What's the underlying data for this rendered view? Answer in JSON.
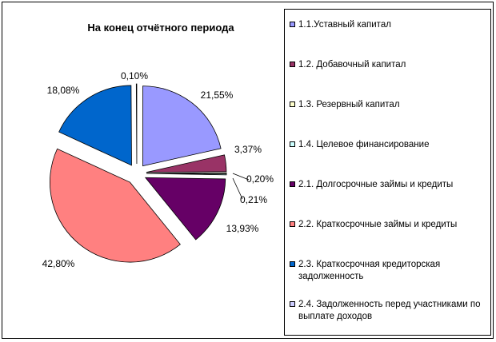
{
  "chart_data": {
    "type": "pie",
    "title": "На конец отчётного периода",
    "slices": [
      {
        "label": "1.1.Уставный капитал",
        "value": 21.55,
        "display": "21,55%",
        "color": "#9999FF"
      },
      {
        "label": "1.2. Добавочный капитал",
        "value": 3.37,
        "display": "3,37%",
        "color": "#993366"
      },
      {
        "label": "1.3. Резервный капитал",
        "value": 0.2,
        "display": "0,20%",
        "color": "#FFFFCC"
      },
      {
        "label": "1.4. Целевое финансирование",
        "value": 0.21,
        "display": "0,21%",
        "color": "#CCFFFF"
      },
      {
        "label": "2.1. Долгосрочные займы и кредиты",
        "value": 13.93,
        "display": "13,93%",
        "color": "#660066"
      },
      {
        "label": "2.2. Краткосрочные займы и кредиты",
        "value": 42.8,
        "display": "42,80%",
        "color": "#FF8080"
      },
      {
        "label": "2.3. Краткосрочная кредиторская задолженность",
        "value": 18.08,
        "display": "18,08%",
        "color": "#0066CC"
      },
      {
        "label": "2.4. Задолженность перед участниками по выплате доходов",
        "value": 0.1,
        "display": "0,10%",
        "color": "#CCCCFF"
      }
    ],
    "legend_position": "right"
  }
}
